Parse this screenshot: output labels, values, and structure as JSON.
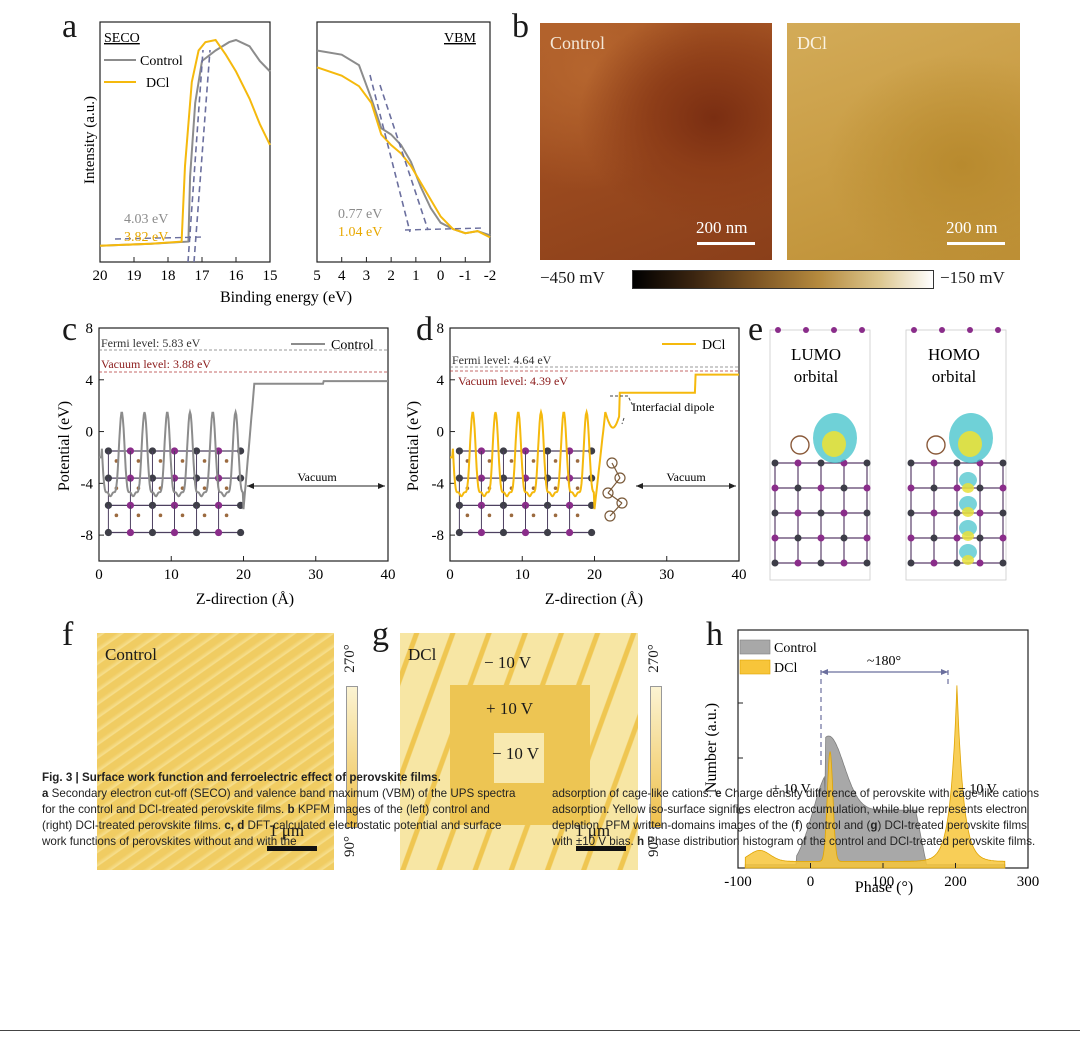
{
  "panel_letters": [
    "a",
    "b",
    "c",
    "d",
    "e",
    "f",
    "g",
    "h"
  ],
  "chart_data": [
    {
      "panel": "a",
      "type": "line",
      "subplots": [
        {
          "label": "SECO",
          "xlim": [
            20,
            15
          ],
          "xticks": [
            "20",
            "19",
            "18",
            "17",
            "16",
            "15"
          ],
          "series": [
            {
              "name": "Control",
              "color": "#8c8c8c",
              "x": [
                20,
                18.5,
                17.4,
                17.35,
                17.2,
                17,
                16.6,
                16.2,
                16.0,
                15.6,
                15.3,
                15
              ],
              "y": [
                0.02,
                0.03,
                0.04,
                0.35,
                0.7,
                0.9,
                0.95,
                0.99,
                1.0,
                0.97,
                0.9,
                0.85
              ]
            },
            {
              "name": "DCl",
              "color": "#f5b90d",
              "x": [
                20,
                18.5,
                17.6,
                17.5,
                17.3,
                17.1,
                16.9,
                16.6,
                16.3,
                16.0,
                15.6,
                15.3,
                15
              ],
              "y": [
                0.02,
                0.03,
                0.04,
                0.4,
                0.8,
                0.95,
                0.99,
                1.0,
                0.93,
                0.85,
                0.72,
                0.6,
                0.5
              ]
            }
          ],
          "annotations": [
            {
              "text": "4.03 eV",
              "color": "#8c8c8c"
            },
            {
              "text": "3.82 eV",
              "color": "#f5b90d"
            }
          ]
        },
        {
          "label": "VBM",
          "xlim": [
            5,
            -2
          ],
          "xticks": [
            "5",
            "4",
            "3",
            "2",
            "1",
            "0",
            "-1",
            "-2"
          ],
          "series": [
            {
              "name": "Control",
              "color": "#8c8c8c",
              "x": [
                5,
                4,
                3.3,
                2.8,
                2.4,
                2.0,
                1.6,
                1.2,
                0.8,
                0.4,
                0,
                -0.5,
                -1,
                -1.5,
                -2
              ],
              "y": [
                0.95,
                0.93,
                0.88,
                0.72,
                0.58,
                0.55,
                0.5,
                0.42,
                0.3,
                0.2,
                0.13,
                0.1,
                0.08,
                0.09,
                0.07
              ]
            },
            {
              "name": "DCl",
              "color": "#f5b90d",
              "x": [
                5,
                4,
                3.3,
                2.8,
                2.4,
                2.0,
                1.6,
                1.2,
                0.8,
                0.4,
                0,
                -0.5,
                -1,
                -1.5,
                -2
              ],
              "y": [
                0.87,
                0.83,
                0.78,
                0.7,
                0.55,
                0.5,
                0.46,
                0.4,
                0.32,
                0.24,
                0.16,
                0.1,
                0.08,
                0.09,
                0.06
              ]
            }
          ],
          "annotations": [
            {
              "text": "0.77 eV",
              "color": "#8c8c8c"
            },
            {
              "text": "1.04 eV",
              "color": "#f5b90d"
            }
          ]
        }
      ],
      "ylabel": "Intensity (a.u.)",
      "xlabel": "Binding energy (eV)"
    },
    {
      "panel": "c",
      "type": "line",
      "xlim": [
        0,
        40
      ],
      "ylim": [
        -10,
        8
      ],
      "xticks": [
        "0",
        "10",
        "20",
        "30",
        "40"
      ],
      "yticks": [
        "8",
        "4",
        "0",
        "-4",
        "-8"
      ],
      "xlabel": "Z-direction (Å)",
      "ylabel": "Potential (eV)",
      "series": [
        {
          "name": "Control",
          "color": "#8c8c8c"
        }
      ],
      "annotations": [
        {
          "text": "Fermi level: 5.83 eV",
          "color": "#333333"
        },
        {
          "text": "Vacuum level: 3.88 eV",
          "color": "#8b1a1a"
        },
        {
          "text": "Vacuum",
          "color": "#222222"
        }
      ]
    },
    {
      "panel": "d",
      "type": "line",
      "xlim": [
        0,
        40
      ],
      "ylim": [
        -10,
        8
      ],
      "xticks": [
        "0",
        "10",
        "20",
        "30",
        "40"
      ],
      "yticks": [
        "8",
        "4",
        "0",
        "-4",
        "-8"
      ],
      "xlabel": "Z-direction (Å)",
      "ylabel": "Potential (eV)",
      "series": [
        {
          "name": "DCl",
          "color": "#f5b90d"
        }
      ],
      "annotations": [
        {
          "text": "Fermi level: 4.64 eV",
          "color": "#333333"
        },
        {
          "text": "Vacuum level: 4.39 eV",
          "color": "#8b1a1a"
        },
        {
          "text": "Interfacial dipole",
          "color": "#222222"
        },
        {
          "text": "Vacuum",
          "color": "#222222"
        }
      ]
    },
    {
      "panel": "h",
      "type": "area",
      "xlim": [
        -100,
        300
      ],
      "xticks": [
        "-100",
        "0",
        "100",
        "200",
        "300"
      ],
      "xlabel": "Phase (°)",
      "ylabel": "Number (a.u.)",
      "series": [
        {
          "name": "Control",
          "color": "#9a9a9a"
        },
        {
          "name": "DCl",
          "color": "#f5b90d"
        }
      ],
      "annotations": [
        {
          "text": "~180°"
        },
        {
          "text": "+ 10 V"
        },
        {
          "text": "− 10 V"
        }
      ]
    }
  ],
  "panel_b": {
    "left_label": "Control",
    "right_label": "DCl",
    "scalebar_left": "200 nm",
    "scalebar_right": "200 nm",
    "colorbar_min": "−450 mV",
    "colorbar_max": "−150 mV"
  },
  "panel_e": {
    "left_label_1": "LUMO",
    "left_label_2": "orbital",
    "right_label_1": "HOMO",
    "right_label_2": "orbital"
  },
  "panel_f": {
    "label": "Control",
    "scalebar": "1 μm",
    "colorbar_top": "270°",
    "colorbar_bottom": "90°"
  },
  "panel_g": {
    "label": "DCl",
    "v1": "− 10 V",
    "v2": "+ 10 V",
    "v3": "− 10 V",
    "scalebar": "1 μm",
    "colorbar_top": "270°",
    "colorbar_bottom": "90°"
  },
  "caption": {
    "title": "Fig. 3 | Surface work function and ferroelectric effect of perovskite films.",
    "left_a_label": "a",
    "left_a_text": " Secondary electron cut-off (SECO) and valence band maximum (VBM) of the UPS spectra for the control and DCl-treated perovskite films. ",
    "left_b_label": "b",
    "left_b_text": " KPFM images of the (left) control and (right) DCl-treated perovskite films. ",
    "left_cd_label": "c, d",
    "left_cd_text": " DFT-calculated electrostatic potential and surface work functions of perovskites without and with the",
    "right_text_1": "adsorption of cage-like cations. ",
    "right_e_label": "e",
    "right_e_text": " Charge density difference of perovskite with cage-like cations adsorption. Yellow iso-surface signifies electron accumulation, while blue represents electron depletion. PFM written-domains images of the (",
    "right_f_label": "f",
    "right_text_2": ") control and (",
    "right_g_label": "g",
    "right_text_3": ") DCl-treated perovskite films with ±10 V bias. ",
    "right_h_label": "h",
    "right_h_text": " Phase distribution histogram of the control and DCl-treated perovskite films."
  }
}
